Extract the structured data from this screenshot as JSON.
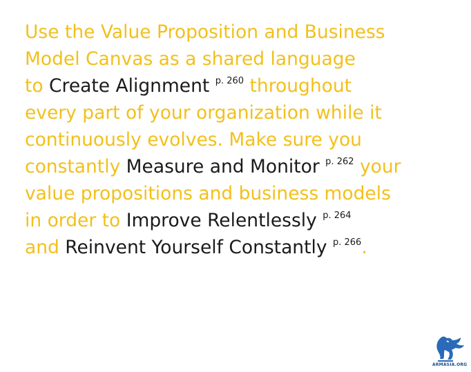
{
  "colors": {
    "accent_yellow": "#f2c01c",
    "text_dark": "#1b1b1b",
    "logo_blue": "#2a6ab8"
  },
  "passage": {
    "line1": {
      "t1": "Use the Value Proposition and Business"
    },
    "line2": {
      "t1": "Model Canvas as a shared language"
    },
    "line3": {
      "t1": "to ",
      "link": "Create Alignment",
      "page": "p. 260",
      "t2": " throughout"
    },
    "line4": {
      "t1": "every part of your organization while it"
    },
    "line5": {
      "t1": "continuously evolves. Make sure you"
    },
    "line6": {
      "t1": "constantly ",
      "link": "Measure and Monitor",
      "page": "p. 262",
      "t2": " your"
    },
    "line7": {
      "t1": "value propositions and business models"
    },
    "line8": {
      "t1": "in order to ",
      "link": "Improve Relentlessly",
      "page": "p. 264"
    },
    "line9": {
      "t1": "and ",
      "link": "Reinvent Yourself Constantly",
      "page": "p. 266",
      "t2": "."
    }
  },
  "logo": {
    "icon": "griffin-logo-icon",
    "text": "ARMASIA.ORG"
  }
}
